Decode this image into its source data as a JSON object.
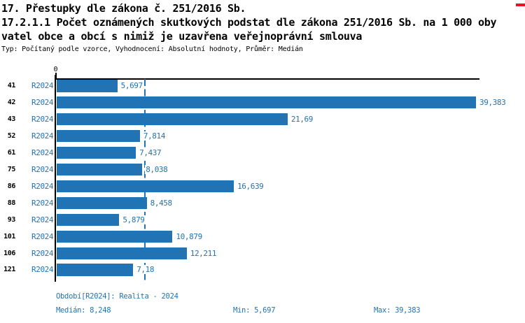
{
  "page": {
    "title_lines": [
      "17. Přestupky dle zákona č. 251/2016 Sb.",
      "17.2.1.1 Počet oznámených skutkových podstat dle zákona 251/2016 Sb. na 1 000 oby",
      "vatel obce a obcí s nimiž je uzavřena veřejnoprávní smlouva"
    ],
    "subtitle": "Typ: Počítaný podle vzorce, Vyhodnocení: Absolutní hodnoty, Průměr: Medián"
  },
  "chart_data": {
    "type": "bar",
    "orientation": "horizontal",
    "title": "17.2.1.1 Počet oznámených skutkových podstat dle zákona 251/2016 Sb. na 1 000 obyvatel obce a obcí s nimiž je uzavřena veřejnoprávní smlouva",
    "categories": [
      "41",
      "42",
      "43",
      "52",
      "61",
      "75",
      "86",
      "88",
      "93",
      "101",
      "106",
      "121"
    ],
    "series": [
      {
        "name": "R2024",
        "values": [
          5.697,
          39.383,
          21.69,
          7.814,
          7.437,
          8.038,
          16.639,
          8.458,
          5.879,
          10.879,
          12.211,
          7.18
        ],
        "value_labels": [
          "5,697",
          "39,383",
          "21,69",
          "7,814",
          "7,437",
          "8,038",
          "16,639",
          "8,458",
          "5,879",
          "10,879",
          "12,211",
          "7,18"
        ]
      }
    ],
    "xlim": [
      0,
      39.65
    ],
    "x_zero_tick_label": "0",
    "median": 8.248,
    "median_line": "vertical-dashed",
    "legend_position": "none",
    "grid": false,
    "bar_color": "#2173b4",
    "value_label_color": "#2173b4",
    "category_label_color": "#000000"
  },
  "footer": {
    "period": "Období[R2024]: Realita - 2024",
    "median": "Medián: 8,248",
    "min": "Min: 5,697",
    "max": "Max: 39,383"
  },
  "colors": {
    "bar_blue": "#2173b4",
    "text_blue": "#2173b4",
    "axis_black": "#000000",
    "red_marker": "#e8112a",
    "background": "#ffffff"
  }
}
